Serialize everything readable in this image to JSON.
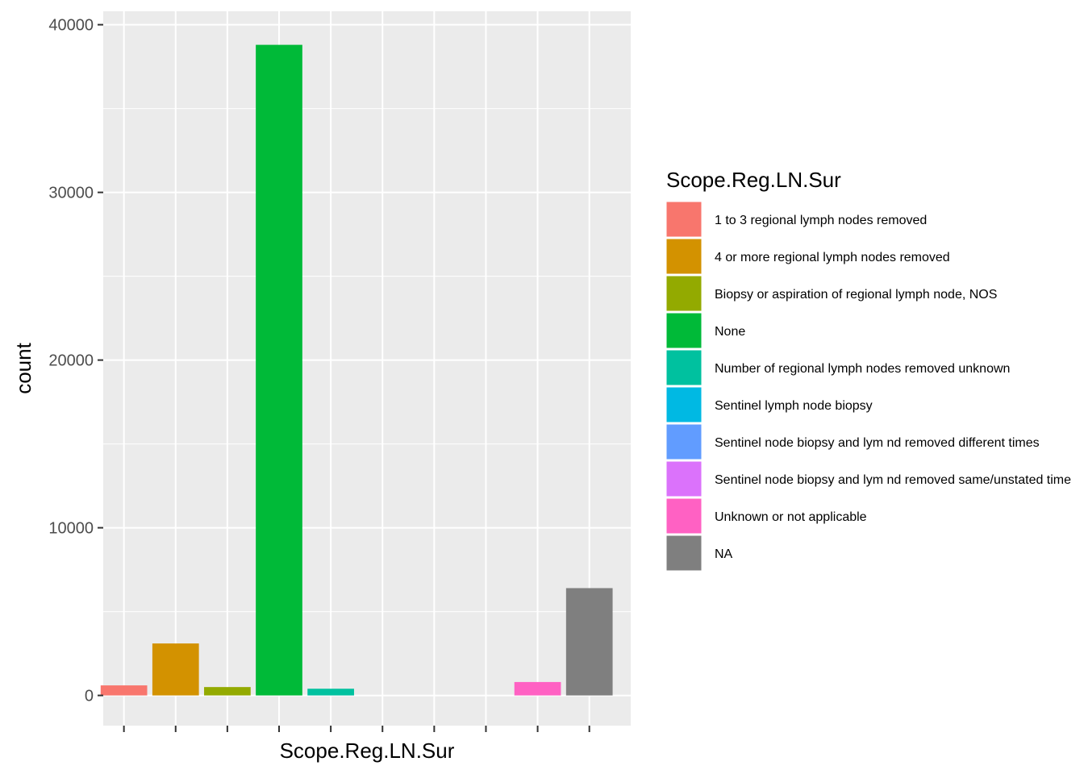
{
  "chart_data": {
    "type": "bar",
    "xlabel": "Scope.Reg.LN.Sur",
    "ylabel": "count",
    "ylim": [
      -1800,
      40800
    ],
    "yticks": [
      0,
      10000,
      20000,
      30000,
      40000
    ],
    "ytick_labels": [
      "0",
      "10000",
      "20000",
      "30000",
      "40000"
    ],
    "categories": [
      "1 to 3 regional lymph nodes removed",
      "4 or more regional lymph nodes removed",
      "Biopsy or aspiration of regional lymph node, NOS",
      "None",
      "Number of regional lymph nodes removed unknown",
      "Sentinel lymph node biopsy",
      "Sentinel node biopsy and lym nd removed different times",
      "Sentinel node biopsy and lym nd removed same/unstated time",
      "Unknown or not applicable",
      "NA"
    ],
    "values": [
      600,
      3100,
      500,
      38800,
      400,
      0,
      0,
      0,
      800,
      6400
    ],
    "colors": [
      "#F8766D",
      "#D39200",
      "#93AA00",
      "#00BA38",
      "#00C19F",
      "#00B9E3",
      "#619CFF",
      "#DB72FB",
      "#FF61C3",
      "#7F7F7F"
    ],
    "legend": {
      "title": "Scope.Reg.LN.Sur",
      "position": "right"
    },
    "grid": true,
    "panel_background": "#EBEBEB"
  }
}
